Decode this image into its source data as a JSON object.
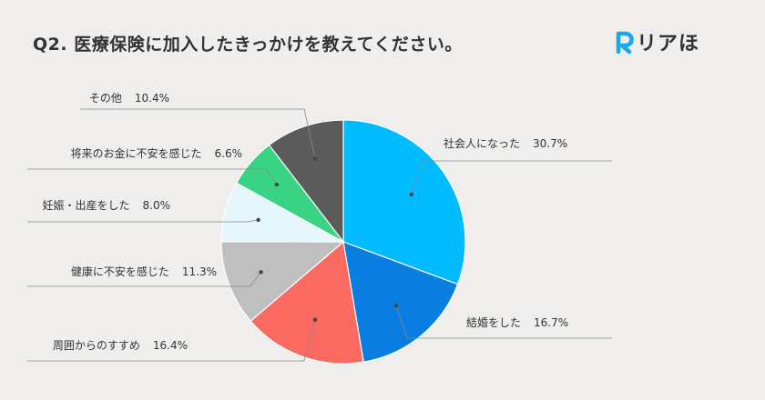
{
  "title": "Q2. 医療保険に加入したきっかけを教えてください。",
  "brand": {
    "mark": "R",
    "text": "リアほ",
    "mark_color": "#18a8f0"
  },
  "chart_data": {
    "type": "pie",
    "start_angle": "top",
    "direction": "clockwise",
    "slices": [
      {
        "label": "社会人になった",
        "value": 30.7,
        "value_text": "30.7%",
        "color": "#00bbff"
      },
      {
        "label": "結婚をした",
        "value": 16.7,
        "value_text": "16.7%",
        "color": "#0a7ee0"
      },
      {
        "label": "周囲からのすすめ",
        "value": 16.4,
        "value_text": "16.4%",
        "color": "#fb6a60"
      },
      {
        "label": "健康に不安を感じた",
        "value": 11.3,
        "value_text": "11.3%",
        "color": "#bfbfbf"
      },
      {
        "label": "妊娠・出産をした",
        "value": 8.0,
        "value_text": "8.0%",
        "color": "#e5f6fd"
      },
      {
        "label": "将来のお金に不安を感じた",
        "value": 6.6,
        "value_text": "6.6%",
        "color": "#38d483"
      },
      {
        "label": "その他",
        "value": 10.4,
        "value_text": "10.4%",
        "color": "#5b5b5b"
      }
    ]
  }
}
